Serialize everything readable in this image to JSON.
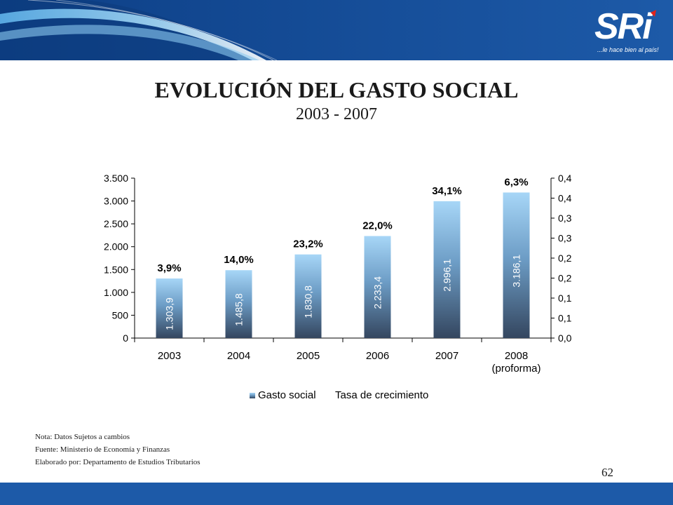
{
  "header": {
    "logo_text": "SRi",
    "logo_tagline": "...le hace bien al país!"
  },
  "title": "EVOLUCIÓN DEL GASTO SOCIAL",
  "subtitle": "2003 - 2007",
  "colors": {
    "header_blue": "#1d5aa8",
    "bar_top": "#9fd0f5",
    "bar_bottom": "#3a4d6c",
    "footer_blue": "#1d5aa8"
  },
  "chart_data": {
    "type": "bar",
    "categories": [
      "2003",
      "2004",
      "2005",
      "2006",
      "2007",
      "2008"
    ],
    "category_sublabels": [
      "",
      "",
      "",
      "",
      "",
      "(proforma)"
    ],
    "series": [
      {
        "name": "Gasto social",
        "axis": "left",
        "values": [
          1303.9,
          1485.8,
          1830.8,
          2233.4,
          2996.1,
          3186.1
        ],
        "value_labels": [
          "1.303,9",
          "1.485,8",
          "1.830,8",
          "2.233,4",
          "2.996,1",
          "3.186,1"
        ]
      },
      {
        "name": "Tasa de crecimiento",
        "axis": "right",
        "values": [
          3.9,
          14.0,
          23.2,
          22.0,
          34.1,
          6.3
        ],
        "value_labels": [
          "3,9%",
          "14,0%",
          "23,2%",
          "22,0%",
          "34,1%",
          "6,3%"
        ]
      }
    ],
    "left_axis": {
      "ylim": [
        0,
        3500
      ],
      "ticks": [
        0,
        500,
        1000,
        1500,
        2000,
        2500,
        3000,
        3500
      ],
      "tick_labels": [
        "0",
        "500",
        "1.000",
        "1.500",
        "2.000",
        "2.500",
        "3.000",
        "3.500"
      ]
    },
    "right_axis": {
      "ticks": [
        0,
        1,
        2,
        3,
        4,
        5,
        6,
        7,
        8
      ],
      "tick_labels": [
        "0,0",
        "0,1",
        "0,1",
        "0,2",
        "0,2",
        "0,3",
        "0,3",
        "0,4",
        "0,4"
      ]
    },
    "legend": [
      "Gasto social",
      "Tasa de crecimiento"
    ],
    "legend_position": "bottom",
    "grid": false
  },
  "notes": [
    "Nota: Datos Sujetos a cambios",
    "Fuente: Ministerio  de Economía y Finanzas",
    "Elaborado por: Departamento de Estudios Tributarios"
  ],
  "page_number": "62"
}
